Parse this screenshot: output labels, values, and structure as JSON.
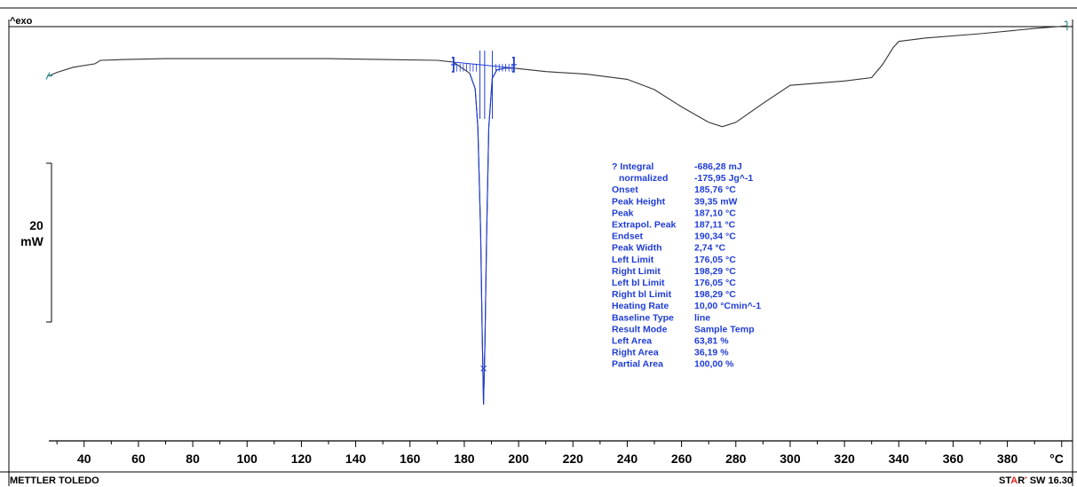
{
  "header": {
    "exo_label": "^exo"
  },
  "scale_bar": {
    "value": "20",
    "unit": "mW"
  },
  "footer": {
    "brand": "METTLER TOLEDO",
    "software_star": "STAR",
    "software_star_highlight": "A",
    "software_rest": "SW 16.30"
  },
  "colors": {
    "curve": "#333333",
    "evaluation": "#1f3cd6",
    "frame": "#000000",
    "limit_marker": "#2a8a8a"
  },
  "results": [
    {
      "label": "? Integral",
      "value": "-686,28 mJ"
    },
    {
      "label": "  normalized",
      "value": "-175,95 Jg^-1"
    },
    {
      "label": "Onset",
      "value": "185,76 °C"
    },
    {
      "label": "Peak Height",
      "value": "39,35 mW"
    },
    {
      "label": "Peak",
      "value": "187,10 °C"
    },
    {
      "label": "Extrapol. Peak",
      "value": "187,11 °C"
    },
    {
      "label": "Endset",
      "value": "190,34 °C"
    },
    {
      "label": "Peak Width",
      "value": "2,74 °C"
    },
    {
      "label": "Left Limit",
      "value": "176,05 °C"
    },
    {
      "label": "Right Limit",
      "value": "198,29 °C"
    },
    {
      "label": "Left bl Limit",
      "value": "176,05 °C"
    },
    {
      "label": "Right bl Limit",
      "value": "198,29 °C"
    },
    {
      "label": "Heating Rate",
      "value": "10,00 °Cmin^-1"
    },
    {
      "label": "Baseline Type",
      "value": "line"
    },
    {
      "label": "Result Mode",
      "value": "Sample Temp"
    },
    {
      "label": "Left Area",
      "value": "63,81 %"
    },
    {
      "label": "Right Area",
      "value": "36,19 %"
    },
    {
      "label": "Partial Area",
      "value": "100,00 %"
    }
  ],
  "chart_data": {
    "type": "line",
    "title": "",
    "xlabel": "°C",
    "ylabel": "",
    "xlim": [
      27,
      404
    ],
    "ylim": [
      -42,
      5
    ],
    "x_ticks": [
      40,
      60,
      80,
      100,
      120,
      140,
      160,
      180,
      200,
      220,
      240,
      260,
      280,
      300,
      320,
      340,
      360,
      380
    ],
    "x_unit_label": "°C",
    "grid": false,
    "series": [
      {
        "x": [
          27,
          30,
          36,
          44,
          46,
          55,
          70,
          90,
          110,
          130,
          150,
          170,
          176,
          182,
          184,
          185,
          186,
          186.6,
          187.1,
          187.6,
          188.2,
          189,
          190.3,
          192,
          195,
          198.3,
          210,
          225,
          240,
          250,
          260,
          270,
          275,
          280,
          290,
          300,
          320,
          330,
          334,
          338,
          340,
          350,
          370,
          390,
          402
        ],
        "y": [
          0.0,
          0.4,
          1.0,
          1.4,
          1.8,
          1.9,
          2.0,
          2.0,
          2.0,
          2.0,
          1.9,
          1.8,
          1.6,
          0.3,
          -1.5,
          -6.0,
          -18.0,
          -30.0,
          -38.2,
          -31.0,
          -19.0,
          -6.0,
          -0.3,
          0.7,
          0.9,
          0.9,
          0.5,
          0.2,
          -0.4,
          -1.6,
          -3.6,
          -5.4,
          -5.9,
          -5.4,
          -3.2,
          -1.1,
          -0.6,
          -0.2,
          1.3,
          3.3,
          4.0,
          4.4,
          4.9,
          5.5,
          5.8
        ]
      }
    ],
    "evaluation": {
      "left_limit": 176.05,
      "right_limit": 198.29,
      "onset": 185.76,
      "peak": 187.1,
      "endset": 190.34,
      "peak_height_mw": 39.35,
      "extrapolated_peak": 187.11,
      "peak_x_marker_y": -34.0
    }
  }
}
